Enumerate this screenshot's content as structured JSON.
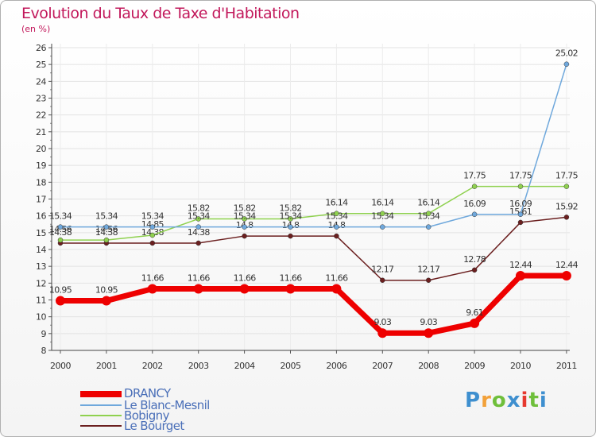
{
  "title": "Evolution du Taux de Taxe d'Habitation",
  "subtitle": "(en %)",
  "brand": {
    "text": "Proxiti",
    "colors": [
      "#3e8fcf",
      "#f2a13a",
      "#6fbf3b",
      "#3e8fcf",
      "#e6392f",
      "#6fbf3b",
      "#3e8fcf"
    ]
  },
  "chart_data": {
    "type": "line",
    "title": "Evolution du Taux de Taxe d'Habitation",
    "ylabel": "(en %)",
    "xlabel": "",
    "ylim": [
      8,
      26
    ],
    "yticks": [
      "8",
      "9",
      "10",
      "11",
      "12",
      "13",
      "14",
      "15",
      "16",
      "17",
      "18",
      "19",
      "20",
      "21",
      "22",
      "23",
      "24",
      "25",
      "26"
    ],
    "categories": [
      "2000",
      "2001",
      "2002",
      "2003",
      "2004",
      "2005",
      "2006",
      "2007",
      "2008",
      "2009",
      "2010",
      "2011"
    ],
    "legend_position": "bottom-left",
    "series": [
      {
        "name": "Le Bourget",
        "color": "#6b1f1f",
        "values": [
          14.38,
          14.38,
          14.38,
          14.38,
          14.8,
          14.8,
          14.8,
          12.17,
          12.17,
          12.78,
          15.61,
          15.92
        ],
        "labels": [
          "14.38",
          "14.38",
          "14.38",
          "14.38",
          "14.8",
          "14.8",
          "14.8",
          "12.17",
          "12.17",
          "12.78",
          "15.61",
          "15.92"
        ]
      },
      {
        "name": "Bobigny",
        "color": "#8fd14f",
        "values": [
          14.56,
          14.56,
          14.85,
          15.82,
          15.82,
          15.82,
          16.14,
          16.14,
          16.14,
          17.75,
          17.75,
          17.75
        ],
        "labels": [
          "14.56",
          "14.56",
          "14.85",
          "15.82",
          "15.82",
          "15.82",
          "16.14",
          "16.14",
          "16.14",
          "17.75",
          "17.75",
          "17.75"
        ]
      },
      {
        "name": "Le Blanc-Mesnil",
        "color": "#6fa8dc",
        "values": [
          15.34,
          15.34,
          15.34,
          15.34,
          15.34,
          15.34,
          15.34,
          15.34,
          15.34,
          16.09,
          16.09,
          25.02
        ],
        "labels": [
          "15.34",
          "15.34",
          "15.34",
          "15.34",
          "15.34",
          "15.34",
          "15.34",
          "15.34",
          "15.34",
          "16.09",
          "16.09",
          "25.02"
        ]
      },
      {
        "name": "DRANCY",
        "color": "#ee0000",
        "values": [
          10.95,
          10.95,
          11.66,
          11.66,
          11.66,
          11.66,
          11.66,
          9.03,
          9.03,
          9.61,
          12.44,
          12.44
        ],
        "labels": [
          "10.95",
          "10.95",
          "11.66",
          "11.66",
          "11.66",
          "11.66",
          "11.66",
          "9.03",
          "9.03",
          "9.61",
          "12.44",
          "12.44"
        ]
      }
    ],
    "legend": [
      "DRANCY",
      "Le Blanc-Mesnil",
      "Bobigny",
      "Le Bourget"
    ]
  }
}
